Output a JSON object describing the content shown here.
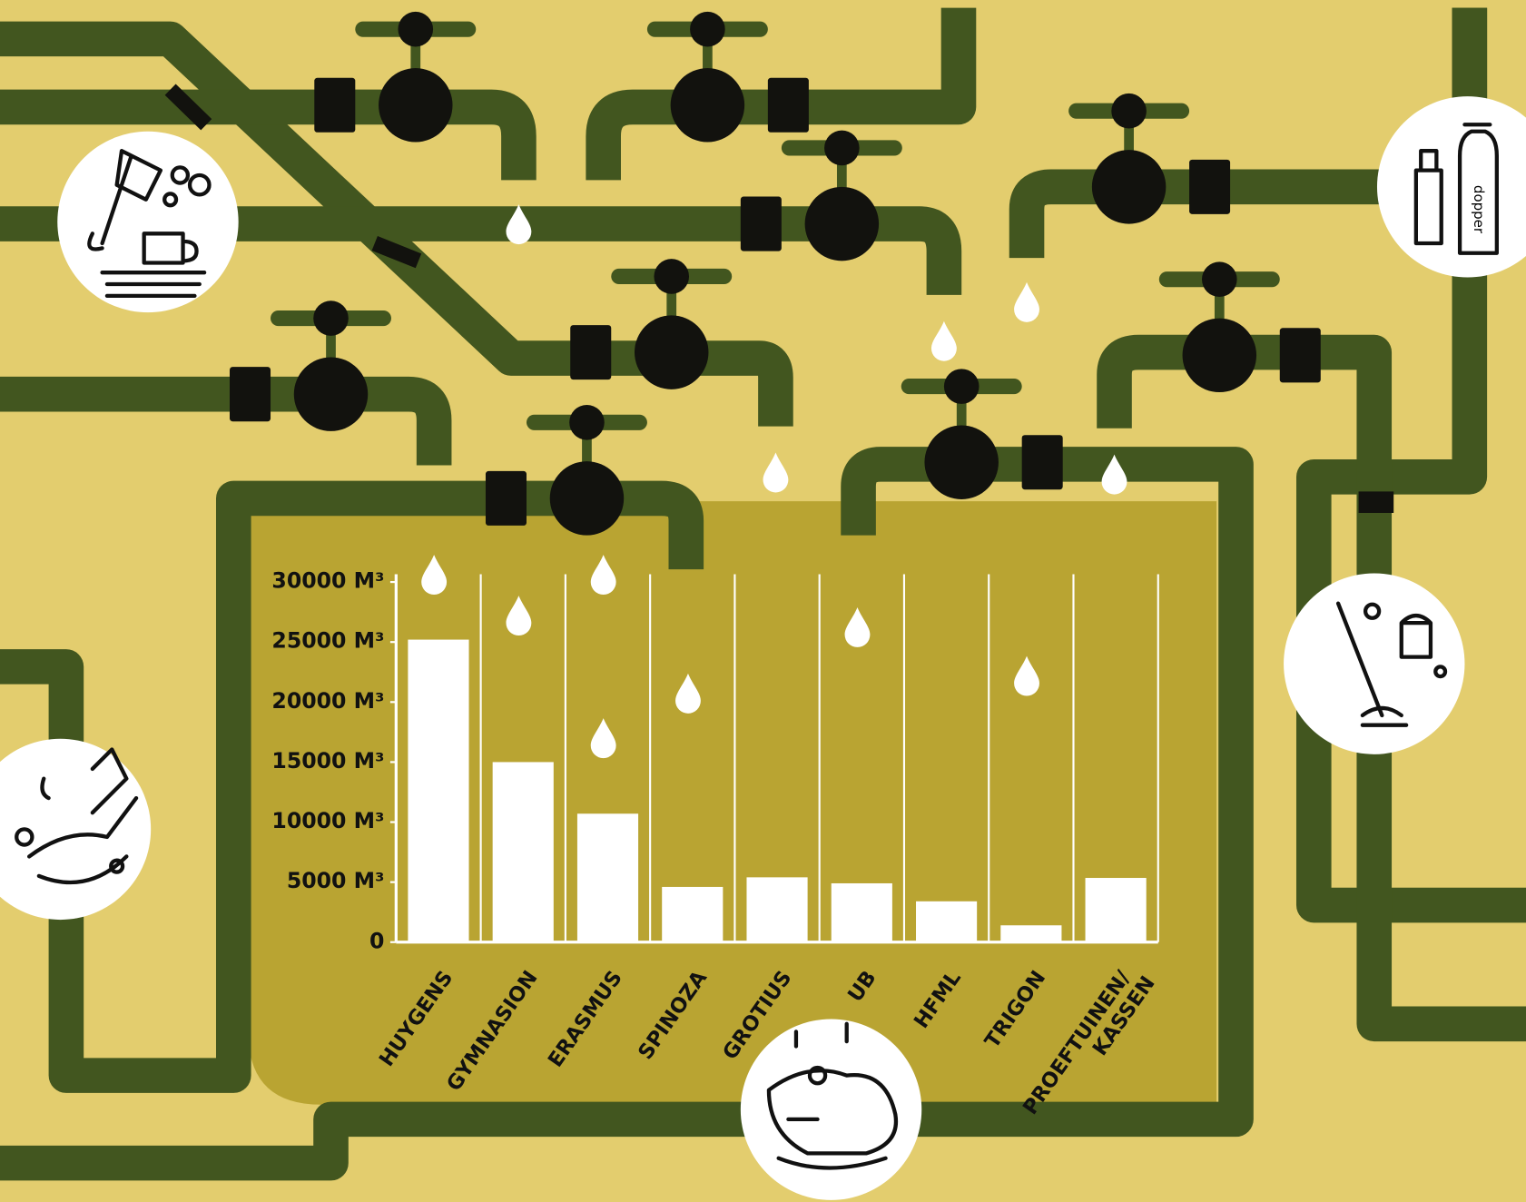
{
  "chart_data": {
    "type": "bar",
    "categories": [
      "HUYGENS",
      "GYMNASION",
      "ERASMUS",
      "SPINOZA",
      "GROTIUS",
      "UB",
      "HFML",
      "TRIGON",
      "PROEFTUINEN/\nKASSEN"
    ],
    "values": [
      25200,
      15000,
      10700,
      4600,
      5400,
      4900,
      3400,
      1400,
      5350
    ],
    "color": "#ffffff",
    "ylim": [
      0,
      30000
    ],
    "yticks": [
      0,
      {
        "value": 5000,
        "label": "5000 M³"
      },
      {
        "value": 10000,
        "label": "10000 M³"
      },
      {
        "value": 15000,
        "label": "15000 M³"
      },
      {
        "value": 20000,
        "label": "20000 M³"
      },
      {
        "value": 25000,
        "label": "25000 M³"
      },
      {
        "value": 30000,
        "label": "30000 M³"
      }
    ]
  },
  "illustrations": {
    "bottle_label": "dopper"
  }
}
